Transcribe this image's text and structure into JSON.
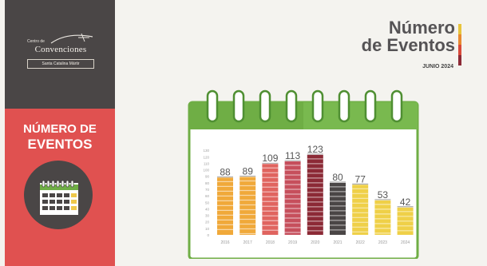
{
  "sidebar": {
    "logo": {
      "small": "Centro de",
      "main": "Convenciones",
      "sub": "Santa Catalina Mártir"
    },
    "title_line1": "NÚMERO DE",
    "title_line2": "EVENTOS",
    "calendar_icon": "calendar-icon"
  },
  "header": {
    "title_line1": "Número",
    "title_line2": "de Eventos",
    "subtitle": "JUNIO 2024",
    "accent_colors": [
      "#e8c43c",
      "#e9892f",
      "#d94a3b",
      "#8c2a36"
    ]
  },
  "chart_data": {
    "type": "bar",
    "categories": [
      "2016",
      "2017",
      "2018",
      "2019",
      "2020",
      "2021",
      "2022",
      "2023",
      "2024"
    ],
    "values": [
      88,
      89,
      109,
      113,
      123,
      80,
      77,
      53,
      42
    ],
    "value_labels": [
      "88",
      "89",
      "109",
      "113",
      "123",
      "80",
      "77",
      "53",
      "42"
    ],
    "ylim": [
      0,
      140
    ],
    "yticks": [
      0,
      10,
      20,
      30,
      40,
      50,
      60,
      70,
      80,
      90,
      100,
      110,
      120,
      130
    ],
    "colors": [
      "#f0a93a",
      "#f0a93a",
      "#e0645f",
      "#c64f5c",
      "#8c2a36",
      "#4a4646",
      "#efd048",
      "#efd048",
      "#efd048"
    ],
    "grid": false
  }
}
